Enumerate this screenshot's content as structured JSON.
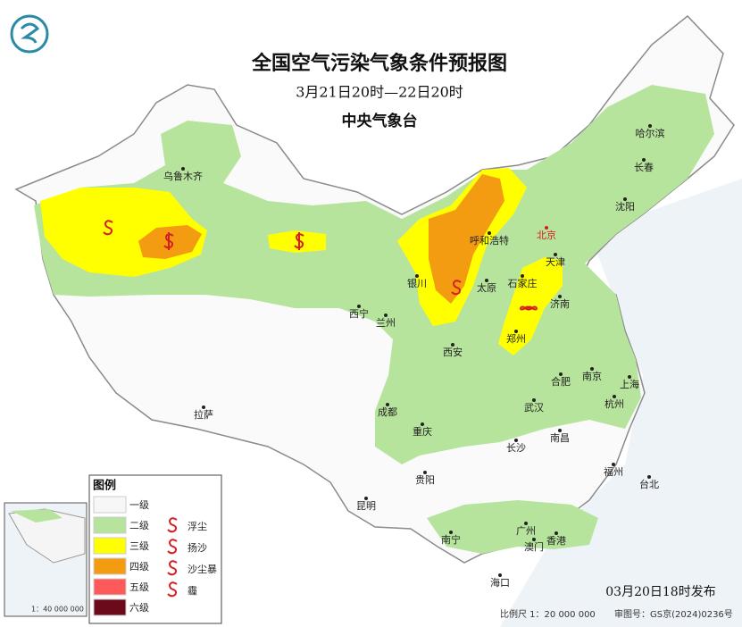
{
  "header": {
    "title": "全国空气污染气象条件预报图",
    "period": "3月21日20时—22日20时",
    "agency": "中央气象台"
  },
  "cities": [
    {
      "label": "乌鲁木齐"
    },
    {
      "label": "呼和浩特"
    },
    {
      "label": "北京"
    },
    {
      "label": "天津"
    },
    {
      "label": "石家庄"
    },
    {
      "label": "太原"
    },
    {
      "label": "银川"
    },
    {
      "label": "西宁"
    },
    {
      "label": "兰州"
    },
    {
      "label": "济南"
    },
    {
      "label": "郑州"
    },
    {
      "label": "西安"
    },
    {
      "label": "合肥"
    },
    {
      "label": "南京"
    },
    {
      "label": "上海"
    },
    {
      "label": "杭州"
    },
    {
      "label": "武汉"
    },
    {
      "label": "成都"
    },
    {
      "label": "重庆"
    },
    {
      "label": "长沙"
    },
    {
      "label": "南昌"
    },
    {
      "label": "福州"
    },
    {
      "label": "台北"
    },
    {
      "label": "贵阳"
    },
    {
      "label": "昆明"
    },
    {
      "label": "南宁"
    },
    {
      "label": "广州"
    },
    {
      "label": "澳门"
    },
    {
      "label": "香港"
    },
    {
      "label": "海口"
    },
    {
      "label": "拉萨"
    },
    {
      "label": "哈尔滨"
    },
    {
      "label": "长春"
    },
    {
      "label": "沈阳"
    }
  ],
  "legend": {
    "title": "图例",
    "levels": [
      "一级",
      "二级",
      "三级",
      "四级",
      "五级",
      "六级"
    ],
    "symbols": [
      "浮尘",
      "扬沙",
      "沙尘暴",
      "霾"
    ]
  },
  "inset": {
    "scale": "1：40 000 000"
  },
  "footer": {
    "issued": "03月20日18时发布",
    "scale": "比例尺 1：20 000 000",
    "approval": "审图号：GS京(2024)0236号"
  }
}
